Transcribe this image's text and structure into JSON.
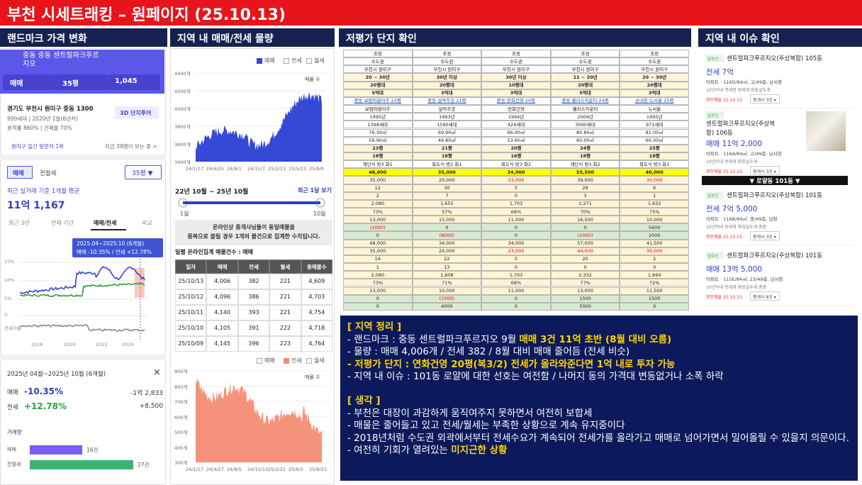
{
  "title": "부천 시세트래킹 – 원페이지 (25.10.13)",
  "panels": [
    "랜드마크 가격 변화",
    "지역 내 매매/전세 물량",
    "저평가 단지 확인",
    "지역 내 이슈 확인"
  ],
  "landmark": {
    "header": "중동 중동 센트럴파크푸르지오",
    "filters": [
      "매매",
      "35평",
      "1,045"
    ],
    "address": "경기도 부천시 원미구 중동 1300",
    "info1": "999세대 | 2020년 1월(6년차)",
    "info2": "용적률 860% | 건폐율 70%",
    "tour": "3D 단지투어",
    "rank": "원미구 일간 방문자 1위",
    "viewers": "지금 39명이 보는 중 >",
    "tabs": [
      "매매",
      "전월세"
    ],
    "size": "35평 ▼",
    "avg_label": "최근 실거래 기준 1개월 평균",
    "avg": "11억 1,167",
    "periods": [
      "최근 3년",
      "전체 기간",
      "매매/전세",
      "비교"
    ],
    "tooltip": [
      "2025.04~2025.10 (6개월)",
      "매매 -10.35%  /  전세 +12.78%"
    ],
    "yticks": [
      "15%",
      "10%",
      "5%",
      "0",
      "전세가율"
    ],
    "xticks": [
      "2018",
      "2020",
      "2022",
      "2024"
    ],
    "range": "2025년 04월~2025년 10월 (6개월)",
    "close": "×",
    "changes": [
      {
        "name": "매매",
        "pct": "-10.35%",
        "amount": "-1억 2,833"
      },
      {
        "name": "전세",
        "pct": "+12.78%",
        "amount": "+8,500"
      }
    ],
    "volume_label": "거래량",
    "volume": [
      {
        "name": "매매",
        "count": "16건"
      },
      {
        "name": "전월세",
        "count": "27건"
      }
    ]
  },
  "supply": {
    "legend": [
      "매매",
      "전세",
      "월세"
    ],
    "chart1": {
      "yticks": [
        "4400개",
        "4200개",
        "4000개",
        "3800개",
        "3600개",
        "3400개"
      ],
      "xticks": [
        "24/1/17",
        "24/4/25",
        "24/8/1",
        "24/11/7",
        "25/2/13",
        "25/5/23",
        "25/9/9"
      ],
      "label": "매물 수"
    },
    "period": "22년 10월 ~ 25년 10월",
    "recent": "최근 1달 보기",
    "slider": [
      "1월",
      "10월"
    ],
    "notice": [
      "온라인상 중개사님들이 동일매물을",
      "중복으로 올릴 경우 1개의 물건으로 집계한 수치입니다."
    ],
    "table_title": "일별 온라인집계 매물건수 : 매매",
    "table": {
      "header": [
        "일자",
        "매매",
        "전세",
        "월세",
        "총매물수"
      ],
      "rows": [
        [
          "25/10/13",
          "4,006",
          "382",
          "221",
          "4,609"
        ],
        [
          "25/10/12",
          "4,096",
          "386",
          "221",
          "4,703"
        ],
        [
          "25/10/11",
          "4,140",
          "393",
          "221",
          "4,754"
        ],
        [
          "25/10/10",
          "4,105",
          "391",
          "222",
          "4,718"
        ],
        [
          "25/10/09",
          "4,145",
          "396",
          "223",
          "4,764"
        ]
      ]
    },
    "chart2": {
      "yticks": [
        "900개",
        "800개",
        "700개",
        "600개",
        "500개",
        "400개",
        "300개"
      ],
      "xticks": [
        "24/1/17",
        "24/4/27",
        "24/8/5",
        "24/11/13",
        "25/2/21",
        "25/6/2",
        "25/9/23"
      ],
      "label": "매물 수"
    }
  },
  "table": {
    "red_cells": [
      [
        16,
        2
      ],
      [
        16,
        4
      ],
      [
        22,
        0
      ],
      [
        23,
        1
      ],
      [
        23,
        3
      ],
      [
        25,
        2
      ],
      [
        25,
        3
      ],
      [
        25,
        4
      ],
      [
        31,
        1
      ]
    ],
    "rows": [
      [
        "조정",
        "조정",
        "조정",
        "조정",
        "조정"
      ],
      [
        "수도권",
        "수도권",
        "수도권",
        "수도권",
        "수도권"
      ],
      [
        "부천시 원미구",
        "부천시 원미구",
        "부천시 원미구",
        "부천시 원미구",
        "부천시 원미구"
      ],
      [
        "20 ~ 30년",
        "30년 이상",
        "30년 이상",
        "11 ~ 20년",
        "20 ~ 30년"
      ],
      [
        "20평대",
        "20평대",
        "10평대",
        "20평대",
        "20평대"
      ],
      [
        "5억대",
        "3억대",
        "3억대",
        "5억대",
        "3억대"
      ],
      [
        "중동 보람마을아주 23평",
        "중동 설악주공 21평",
        "중동 연화건영 20평",
        "중동 웰리스카운티 24평",
        "송내동 뉴서울 25평"
      ],
      [
        "보람마을아주",
        "설악주공",
        "연화건영",
        "웰리스카운티",
        "뉴서울"
      ],
      [
        "1995년",
        "1993년",
        "1994년",
        "2009년",
        "1995년"
      ],
      [
        "1398세대",
        "1590세대",
        "424세대",
        "3090세대",
        "971세대"
      ],
      [
        "76.30㎡",
        "69.90㎡",
        "66.00㎡",
        "80.80㎡",
        "81.00㎡"
      ],
      [
        "59.90㎡",
        "49.80㎡",
        "53.60㎡",
        "60.00㎡",
        "60.00㎡"
      ],
      [
        "23평",
        "21평",
        "20평",
        "24평",
        "25평"
      ],
      [
        "18평",
        "18평",
        "16평",
        "18평",
        "18평"
      ],
      [
        "계단식 방3 화1",
        "복도식 방2 화1",
        "복도식 방3 화2",
        "계단식 방3 화2",
        "복도식 방3 화1"
      ],
      [
        "48,000",
        "35,000",
        "34,000",
        "55,500",
        "40,000"
      ],
      [
        "35,000",
        "20,000",
        "23,000",
        "39,000",
        "30,000"
      ],
      [
        "12",
        "30",
        "5",
        "28",
        "6"
      ],
      [
        "2",
        "7",
        "0",
        "3",
        "1"
      ],
      [
        "2,080",
        "1,655",
        "1,703",
        "2,271",
        "1,632"
      ],
      [
        "73%",
        "57%",
        "68%",
        "70%",
        "75%"
      ],
      [
        "13,000",
        "15,000",
        "11,000",
        "16,500",
        "10,000"
      ],
      [
        "(1000)",
        "0",
        "0",
        "0",
        "5600"
      ],
      [
        "0",
        "(8000)",
        "0",
        "(1000)",
        "2000"
      ],
      [
        "48,000",
        "34,000",
        "34,000",
        "57,000",
        "41,500"
      ],
      [
        "35,000",
        "24,000",
        "23,000",
        "44,000",
        "30,000"
      ],
      [
        "14",
        "22",
        "5",
        "20",
        "2"
      ],
      [
        "1",
        "13",
        "0",
        "0",
        "0"
      ],
      [
        "2,080",
        "1,608",
        "1,703",
        "2,332",
        "1,694"
      ],
      [
        "73%",
        "71%",
        "68%",
        "77%",
        "72%"
      ],
      [
        "13,000",
        "10,000",
        "11,000",
        "13,000",
        "11,500"
      ],
      [
        "0",
        "(1000)",
        "0",
        "1500",
        "1500"
      ],
      [
        "0",
        "4000",
        "0",
        "5000",
        "0"
      ]
    ]
  },
  "issues": {
    "divider": "▼ 로얄동 101동 ▼",
    "cards": [
      {
        "badge": "집주인",
        "title": "센트럴파크푸르지오(주상복합) 105동",
        "price": "전세 7억",
        "desc": "아파트 · 116D/84㎡, 고/49층, 남서향",
        "tags": "10년이내  역세권  방세개  화장실두개",
        "confirmed": "확인매물 25.10.13.",
        "agents": "중개사 3곳 ▾"
      },
      {
        "badge": "집주인",
        "title": "센트럴파크푸르지오(주상복합) 106동",
        "price": "매매 11억 2,000",
        "desc": "아파트 · 116A/84㎡, 고/49층, 남서향",
        "tags": "10년이내  방세개  화장실두개",
        "confirmed": "확인매물 25.10.13.",
        "agents": "중개사 3곳 ▾"
      },
      {
        "badge": "집주인",
        "title": "센트럴파크푸르지오(주상복합) 101동",
        "price": "전세 7억 5,000",
        "desc": "아파트 · 116B/84㎡, 중/49층, 남향",
        "tags": "10년이내  방세개  화장실두개  중층",
        "confirmed": "확인매물 25.10.13.",
        "agents": "중개사 3곳 ▾"
      },
      {
        "badge": "집주인",
        "title": "센트럴파크푸르지오(주상복합) 101동",
        "price": "매매 13억 5,000",
        "desc": "아파트 · 115E/84㎡, 23/49층, 남서향",
        "tags": "10년이내  방세개  화장실두개  중층",
        "confirmed": "확인매물 25.10.13.",
        "agents": "중개사 8곳 ▾"
      }
    ]
  },
  "summary": {
    "sections": [
      {
        "heading": "[ 지역 정리 ]",
        "lines": [
          [
            {
              "text": "- 랜드마크 : 중동 센트럴파크푸르지오 9월 ",
              "highlight": false
            },
            {
              "text": "매매 3건 11억 초반 (8월 대비 오름)",
              "highlight": true
            }
          ],
          [
            {
              "text": "- 물량 : 매매 4,006개 / 전세 382 / 8월 대비 매매 줄어듬 (전세 비슷)",
              "highlight": false
            }
          ],
          [
            {
              "text": "- 저평가 단지 : 연화건영 20평(복3/2) 전세가 올라와준다면 1억 내로 투자 가능",
              "highlight": true
            }
          ],
          [
            {
              "text": "- 지역 내 이슈 : 101동 로얄에 대한 선호는 여전함 / 나머지 동의 가격대 변동없거나 소폭 하락",
              "highlight": false
            }
          ]
        ]
      },
      {
        "heading": "[ 생각 ]",
        "lines": [
          [
            {
              "text": "- 부천은 대장이 과감하게 움직여주지 못하면서 여전히 보합세",
              "highlight": false
            }
          ],
          [
            {
              "text": "- 매물은 줄어들고 있고 전세/월세는 부족한 상황으로 계속 유지중이다",
              "highlight": false
            }
          ],
          [
            {
              "text": "- 2018년처럼 수도권 외곽에서부터 전세수요가 계속되어 전세가를 올라가고 매매로 넘어가면서 밀어올릴 수 있을지 의문이다.",
              "highlight": false
            }
          ],
          [
            {
              "text": "- 여전히 기회가 열려있는 ",
              "highlight": false
            },
            {
              "text": "미지근한 상황",
              "highlight": true
            }
          ]
        ]
      }
    ]
  }
}
